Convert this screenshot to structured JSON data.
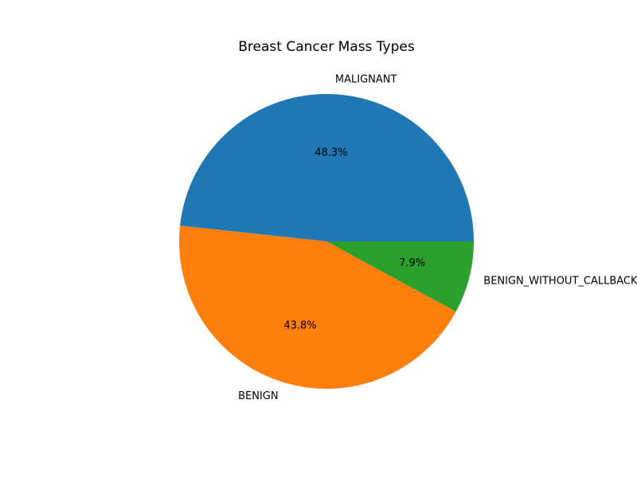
{
  "chart_data": {
    "type": "pie",
    "title": "Breast Cancer Mass Types",
    "categories": [
      "MALIGNANT",
      "BENIGN",
      "BENIGN_WITHOUT_CALLBACK"
    ],
    "values": [
      48.3,
      43.8,
      7.9
    ],
    "value_labels": [
      "48.3%",
      "43.8%",
      "7.9%"
    ],
    "colors": [
      "#1f77b4",
      "#ff7f0e",
      "#2ca02c"
    ],
    "start_angle_deg": 0,
    "direction": "counterclockwise"
  }
}
